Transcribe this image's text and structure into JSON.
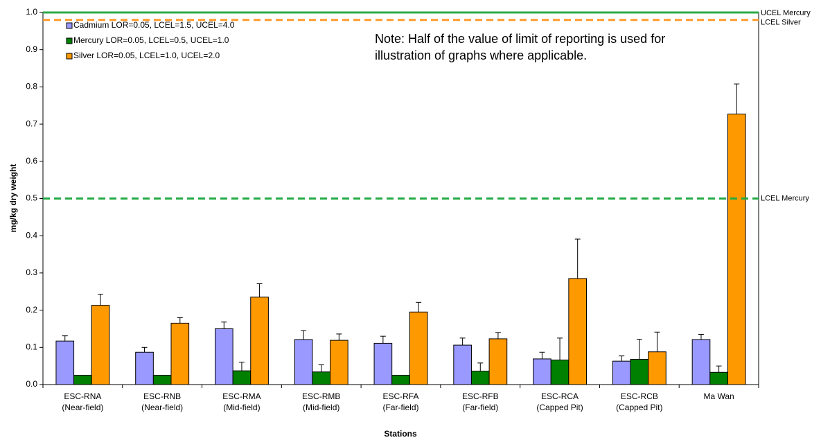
{
  "chart_data": {
    "type": "bar",
    "xlabel": "Stations",
    "ylabel": "mg/kg dry weight",
    "categories": [
      [
        "ESC-RNA",
        "(Near-field)"
      ],
      [
        "ESC-RNB",
        "(Near-field)"
      ],
      [
        "ESC-RMA",
        "(Mid-field)"
      ],
      [
        "ESC-RMB",
        "(Mid-field)"
      ],
      [
        "ESC-RFA",
        "(Far-field)"
      ],
      [
        "ESC-RFB",
        "(Far-field)"
      ],
      [
        "ESC-RCA",
        "(Capped Pit)"
      ],
      [
        "ESC-RCB",
        "(Capped Pit)"
      ],
      [
        "Ma Wan"
      ]
    ],
    "series": [
      {
        "name": "Cadmium LOR=0.05, LCEL=1.5, UCEL=4.0",
        "color": "#9999ff",
        "values": [
          0.117,
          0.087,
          0.15,
          0.121,
          0.111,
          0.106,
          0.069,
          0.063,
          0.121
        ],
        "errors": [
          0.014,
          0.013,
          0.018,
          0.024,
          0.019,
          0.019,
          0.018,
          0.014,
          0.014
        ]
      },
      {
        "name": "Mercury LOR=0.05, LCEL=0.5, UCEL=1.0",
        "color": "#008000",
        "values": [
          0.025,
          0.025,
          0.037,
          0.034,
          0.025,
          0.036,
          0.066,
          0.068,
          0.033
        ],
        "errors": [
          null,
          null,
          0.023,
          0.019,
          null,
          0.022,
          0.059,
          0.054,
          0.017
        ]
      },
      {
        "name": "Silver LOR=0.05, LCEL=1.0, UCEL=2.0",
        "color": "#ff9900",
        "values": [
          0.213,
          0.165,
          0.235,
          0.119,
          0.195,
          0.123,
          0.285,
          0.088,
          0.727
        ],
        "errors": [
          0.03,
          0.015,
          0.036,
          0.017,
          0.026,
          0.017,
          0.106,
          0.053,
          0.081
        ]
      }
    ],
    "reference_lines": [
      {
        "label": "UCEL Mercury",
        "value": 1.0,
        "color": "#2eaa4a",
        "dashed": false
      },
      {
        "label": "LCEL Silver",
        "value": 0.98,
        "color": "#ff9a2e",
        "dashed": true
      },
      {
        "label": "LCEL Mercury",
        "value": 0.5,
        "color": "#22aa44",
        "dashed": true
      }
    ],
    "note": [
      "Note: Half of the value of limit of reporting is used for",
      "illustration of graphs where applicable."
    ],
    "ylim": [
      0,
      1.0
    ],
    "yticks": [
      {
        "value": 0,
        "label": "0.0"
      },
      0.1,
      0.2,
      0.3,
      0.4,
      0.5,
      0.6,
      0.7,
      0.8,
      0.9,
      {
        "value": 1.0,
        "label": "1.0"
      }
    ],
    "legend": "upper left"
  }
}
